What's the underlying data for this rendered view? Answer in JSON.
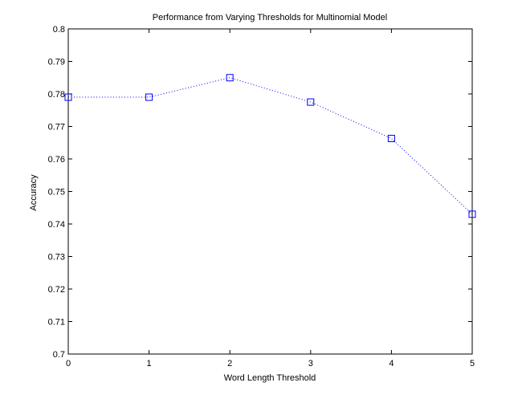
{
  "chart_data": {
    "type": "line",
    "title": "Performance from Varying Thresholds for Multinomial Model",
    "xlabel": "Word Length Threshold",
    "ylabel": "Accuracy",
    "xlim": [
      0,
      5
    ],
    "ylim": [
      0.7,
      0.8
    ],
    "xticks": [
      0,
      1,
      2,
      3,
      4,
      5
    ],
    "xtick_labels": [
      "0",
      "1",
      "2",
      "3",
      "4",
      "5"
    ],
    "yticks": [
      0.7,
      0.71,
      0.72,
      0.73,
      0.74,
      0.75,
      0.76,
      0.77,
      0.78,
      0.79,
      0.8
    ],
    "ytick_labels": [
      "0.7",
      "0.71",
      "0.72",
      "0.73",
      "0.74",
      "0.75",
      "0.76",
      "0.77",
      "0.78",
      "0.79",
      "0.8"
    ],
    "grid": false,
    "series": [
      {
        "x": [
          0,
          1,
          2,
          3,
          4,
          5
        ],
        "values": [
          0.779,
          0.779,
          0.785,
          0.7775,
          0.7663,
          0.743
        ],
        "color": "#0000ff",
        "line_style": "dotted",
        "marker": "square"
      }
    ]
  }
}
